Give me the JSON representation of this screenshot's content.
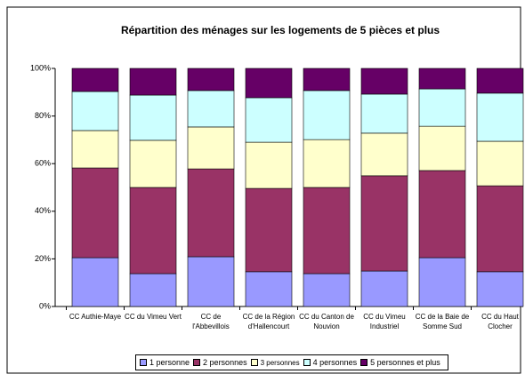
{
  "chart_data": {
    "type": "stacked_bar_100",
    "title": "Répartition des ménages sur les logements de 5 pièces et plus",
    "categories": [
      "CC Authie-Maye",
      "CC du Vimeu Vert",
      "CC de l'Abbevillois",
      "CC de la Région d'Hallencourt",
      "CC du Canton de Nouvion",
      "CC du Vimeu Industriel",
      "CC de la Baie de Somme Sud",
      "CC du Haut Clocher"
    ],
    "series": [
      {
        "name": "1 personne",
        "color": "#9999ff",
        "values": [
          20.5,
          13.8,
          20.9,
          14.6,
          13.8,
          14.9,
          20.5,
          14.6
        ]
      },
      {
        "name": "2 personnes",
        "color": "#993366",
        "values": [
          37.7,
          36.2,
          36.9,
          35.0,
          36.2,
          40.0,
          36.6,
          36.1
        ]
      },
      {
        "name": "3 personnes",
        "color": "#ffffcc",
        "values": [
          15.7,
          19.8,
          17.6,
          19.4,
          20.1,
          17.9,
          18.6,
          18.7
        ]
      },
      {
        "name": "4 personnes",
        "color": "#ccffff",
        "values": [
          16.4,
          19.0,
          15.3,
          18.7,
          20.6,
          16.4,
          15.7,
          20.2
        ]
      },
      {
        "name": "5 personnes et plus",
        "color": "#660066",
        "values": [
          9.7,
          11.2,
          9.3,
          12.3,
          9.3,
          10.8,
          8.6,
          10.4
        ]
      }
    ],
    "ylim": [
      0,
      100
    ],
    "yticks": [
      {
        "value": 0,
        "label": "0%"
      },
      {
        "value": 20,
        "label": "20%"
      },
      {
        "value": 40,
        "label": "40%"
      },
      {
        "value": 60,
        "label": "60%"
      },
      {
        "value": 80,
        "label": "80%"
      },
      {
        "value": 100,
        "label": "100%"
      }
    ],
    "legend": "bottom"
  }
}
